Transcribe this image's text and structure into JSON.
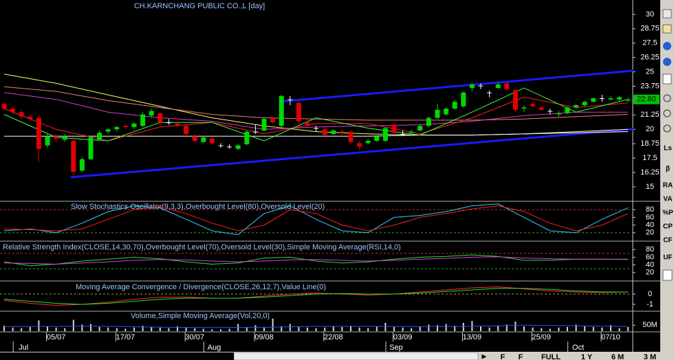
{
  "chart_data": [
    {
      "type": "candlestick",
      "title": "CH.KARNCHANG PUBLIC CO.,L [day]",
      "categories": [
        null,
        null,
        null,
        null,
        null,
        null,
        "05/07",
        null,
        null,
        null,
        null,
        null,
        null,
        null,
        "17/07",
        null,
        null,
        null,
        null,
        null,
        null,
        null,
        "30/07",
        null,
        null,
        null,
        null,
        null,
        null,
        null,
        "09/08",
        null,
        null,
        null,
        null,
        null,
        null,
        null,
        "22/08",
        null,
        null,
        null,
        null,
        null,
        null,
        null,
        "03/09",
        null,
        null,
        null,
        null,
        null,
        null,
        null,
        "13/09",
        null,
        null,
        null,
        null,
        null,
        null,
        null,
        "25/09",
        null,
        null,
        null,
        null,
        null,
        null,
        null,
        "07/10",
        null,
        null
      ],
      "months": [
        null,
        null,
        "Jul",
        null,
        null,
        null,
        null,
        null,
        null,
        null,
        null,
        null,
        null,
        null,
        null,
        null,
        null,
        null,
        null,
        null,
        null,
        null,
        null,
        null,
        "Aug",
        null,
        null,
        null,
        null,
        null,
        null,
        null,
        null,
        null,
        null,
        null,
        null,
        null,
        null,
        null,
        null,
        null,
        null,
        null,
        null,
        "Sep",
        null,
        null,
        null,
        null,
        null,
        null,
        null,
        null,
        null,
        null,
        null,
        null,
        null,
        null,
        null,
        null,
        null,
        null,
        null,
        null,
        "Oct",
        null,
        null,
        null,
        null,
        null,
        null
      ],
      "open": [
        22.2,
        21.8,
        21.5,
        21.1,
        21.0,
        18.6,
        19.4,
        19.1,
        19.0,
        16.4,
        17.4,
        19.1,
        19.8,
        20.0,
        20.3,
        20.2,
        20.3,
        21.2,
        21.4,
        20.6,
        20.5,
        20.3,
        19.4,
        18.9,
        19.2,
        18.6,
        18.5,
        18.3,
        18.7,
        19.8,
        19.9,
        20.9,
        20.3,
        22.6,
        22.3,
        20.6,
        20.1,
        20.0,
        19.6,
        19.8,
        19.8,
        18.8,
        18.8,
        19.0,
        19.0,
        20.4,
        19.6,
        19.7,
        19.9,
        20.3,
        21.0,
        21.3,
        21.8,
        22.0,
        23.6,
        23.8,
        23.2,
        23.6,
        24.0,
        23.4,
        21.8,
        22.2,
        21.9,
        21.6,
        21.3,
        21.4,
        21.9,
        22.1,
        22.4,
        22.7,
        22.6,
        22.6,
        22.5
      ],
      "high": [
        22.3,
        22.0,
        21.7,
        21.3,
        21.2,
        19.6,
        19.6,
        19.6,
        19.3,
        17.6,
        19.5,
        19.9,
        20.1,
        20.3,
        20.5,
        20.6,
        21.5,
        21.8,
        21.5,
        20.9,
        20.7,
        20.5,
        19.6,
        19.4,
        19.3,
        18.8,
        18.7,
        18.7,
        19.9,
        20.4,
        21.1,
        21.1,
        23.0,
        22.9,
        22.4,
        20.9,
        20.3,
        20.2,
        20.0,
        20.0,
        19.9,
        19.0,
        19.2,
        19.5,
        20.2,
        20.5,
        19.9,
        20.0,
        20.5,
        21.1,
        22.2,
        21.9,
        22.6,
        23.3,
        24.0,
        24.0,
        23.4,
        24.1,
        24.1,
        23.5,
        22.1,
        22.4,
        22.1,
        21.8,
        21.6,
        22.0,
        22.2,
        22.5,
        22.8,
        23.0,
        22.9,
        22.9,
        22.8
      ],
      "low": [
        21.7,
        21.3,
        20.9,
        20.7,
        17.2,
        18.4,
        18.9,
        18.9,
        16.0,
        16.3,
        17.3,
        19.0,
        19.6,
        19.8,
        20.0,
        20.0,
        20.2,
        21.0,
        20.4,
        20.4,
        20.2,
        19.4,
        18.8,
        18.8,
        18.7,
        18.4,
        18.3,
        18.2,
        18.6,
        19.6,
        19.8,
        20.5,
        20.2,
        22.1,
        20.4,
        20.2,
        19.8,
        19.3,
        19.5,
        19.5,
        18.7,
        18.2,
        18.7,
        18.9,
        18.9,
        19.5,
        19.4,
        19.5,
        19.8,
        20.2,
        20.9,
        21.2,
        21.7,
        21.9,
        23.3,
        23.5,
        22.8,
        23.5,
        23.4,
        21.5,
        21.5,
        21.9,
        21.6,
        21.3,
        21.1,
        21.3,
        21.8,
        22.0,
        22.3,
        22.4,
        22.5,
        22.4,
        22.4
      ],
      "close": [
        21.8,
        21.5,
        21.1,
        20.9,
        18.3,
        19.4,
        19.2,
        19.4,
        16.3,
        17.4,
        19.3,
        19.7,
        20.0,
        20.2,
        20.2,
        20.5,
        21.3,
        21.6,
        20.6,
        20.6,
        20.3,
        19.6,
        19.0,
        19.3,
        18.8,
        18.6,
        18.5,
        18.6,
        19.8,
        19.8,
        20.9,
        20.6,
        22.9,
        22.6,
        20.7,
        20.3,
        20.1,
        19.5,
        19.9,
        19.7,
        18.9,
        18.5,
        19.0,
        19.4,
        20.1,
        19.7,
        19.6,
        19.8,
        20.3,
        21.0,
        21.7,
        21.8,
        22.4,
        23.2,
        23.9,
        23.8,
        23.2,
        23.9,
        23.5,
        21.7,
        21.9,
        22.0,
        21.7,
        21.6,
        21.4,
        21.9,
        22.1,
        22.4,
        22.7,
        22.7,
        22.7,
        22.8,
        22.6
      ],
      "up_color": "#00d800",
      "down_color": "#e00000",
      "flat_color": "#ffffff",
      "last": 22.6,
      "last_label": "22.60",
      "last_color": "#00c000",
      "lines": [
        {
          "color": "#ffff66",
          "x": [
            0,
            6,
            12,
            18,
            24,
            30,
            36,
            42,
            48,
            54,
            60,
            66,
            72
          ],
          "values": [
            24.8,
            24.0,
            23.0,
            22.0,
            21.0,
            20.3,
            19.8,
            19.6,
            19.5,
            19.5,
            19.6,
            19.8,
            20.0
          ]
        },
        {
          "color": "#ffffff",
          "x": [
            0,
            6,
            12,
            18,
            24,
            30,
            36,
            42,
            48,
            54,
            60,
            66,
            72
          ],
          "values": [
            19.4,
            19.4,
            19.4,
            19.4,
            19.4,
            19.4,
            19.4,
            19.4,
            19.5,
            19.5,
            19.6,
            19.7,
            19.8
          ]
        },
        {
          "color": "#f08070",
          "x": [
            0,
            6,
            12,
            18,
            24,
            30,
            36,
            42,
            48,
            54,
            60,
            66,
            72
          ],
          "values": [
            23.7,
            23.3,
            22.5,
            21.9,
            21.3,
            21.0,
            20.9,
            20.8,
            20.8,
            20.8,
            20.9,
            21.1,
            21.3
          ]
        },
        {
          "color": "#d040d0",
          "x": [
            0,
            6,
            12,
            18,
            24,
            30,
            36,
            42,
            48,
            54,
            60,
            66,
            72
          ],
          "values": [
            23.2,
            22.6,
            21.5,
            21.0,
            20.7,
            20.0,
            20.2,
            20.3,
            20.4,
            20.7,
            21.2,
            21.5,
            21.5
          ]
        },
        {
          "color": "#ff2020",
          "x": [
            0,
            6,
            12,
            18,
            24,
            30,
            36,
            42,
            48,
            54,
            60,
            66,
            72
          ],
          "values": [
            21.8,
            20.0,
            19.0,
            20.2,
            20.6,
            19.6,
            20.5,
            20.5,
            19.6,
            21.0,
            22.8,
            21.9,
            22.3
          ]
        },
        {
          "color": "#40ff40",
          "x": [
            0,
            6,
            12,
            18,
            24,
            30,
            36,
            42,
            48,
            54,
            60,
            66,
            72
          ],
          "values": [
            21.3,
            19.3,
            19.0,
            20.6,
            20.6,
            19.0,
            21.0,
            20.1,
            19.5,
            21.5,
            23.6,
            21.5,
            22.6
          ]
        }
      ],
      "trendlines": [
        {
          "color": "#1a1aff",
          "x": [
            7.7,
            72.6
          ],
          "values": [
            15.83,
            20.02
          ]
        },
        {
          "color": "#1a1aff",
          "x": [
            31.8,
            72.6
          ],
          "values": [
            22.41,
            25.1
          ]
        }
      ],
      "ylim": [
        13.8,
        31.25
      ],
      "yticks": [
        15,
        16.25,
        17.5,
        18.75,
        20,
        21.25,
        22.5,
        23.75,
        25,
        26.25,
        27.5,
        28.75,
        30
      ]
    },
    {
      "type": "line",
      "title": "Slow Stochastics Oscillator(9,3,3),Overbought Level(80),Oversold Level(20)",
      "x": [
        0,
        3,
        6,
        9,
        12,
        15,
        18,
        21,
        24,
        27,
        30,
        33,
        36,
        39,
        42,
        45,
        48,
        51,
        54,
        57,
        60,
        63,
        66,
        69,
        72
      ],
      "series": [
        {
          "color": "#30d0ff",
          "values": [
            25,
            30,
            20,
            45,
            75,
            90,
            85,
            55,
            25,
            15,
            70,
            90,
            55,
            25,
            20,
            60,
            65,
            75,
            90,
            95,
            60,
            25,
            20,
            55,
            85
          ]
        },
        {
          "color": "#ff2020",
          "values": [
            30,
            28,
            25,
            30,
            55,
            80,
            88,
            70,
            45,
            25,
            40,
            80,
            70,
            40,
            25,
            40,
            60,
            70,
            82,
            90,
            75,
            45,
            25,
            40,
            70
          ]
        }
      ],
      "levels": [
        80,
        20
      ],
      "level_colors": [
        "#c03030",
        "#30a030"
      ],
      "ylim": [
        0,
        100
      ],
      "yticks": [
        20,
        40,
        60,
        80
      ]
    },
    {
      "type": "line",
      "title": "Relative Strength Index(CLOSE,14,30,70),Overbought Level(70),Oversold Level(30),Simple Moving Average(RSI,14,0)",
      "x": [
        0,
        3,
        6,
        9,
        12,
        15,
        18,
        21,
        24,
        27,
        30,
        33,
        36,
        39,
        42,
        45,
        48,
        51,
        54,
        57,
        60,
        63,
        66,
        69,
        72
      ],
      "series": [
        {
          "color": "#30e030",
          "values": [
            48,
            38,
            42,
            50,
            55,
            60,
            56,
            48,
            42,
            45,
            58,
            60,
            50,
            45,
            48,
            55,
            60,
            62,
            66,
            62,
            52,
            52,
            55,
            55,
            54
          ]
        },
        {
          "color": "#e040e0",
          "values": [
            45,
            44,
            42,
            45,
            48,
            52,
            54,
            53,
            50,
            48,
            50,
            53,
            54,
            52,
            50,
            52,
            55,
            57,
            60,
            61,
            58,
            56,
            55,
            55,
            55
          ]
        }
      ],
      "levels": [
        70,
        30
      ],
      "level_colors": [
        "#c03030",
        "#30a030"
      ],
      "ylim": [
        0,
        100
      ],
      "yticks": [
        20,
        40,
        60,
        80
      ]
    },
    {
      "type": "line",
      "title": "Moving Average Convergence / Divergence(CLOSE,26,12,7),Value Line(0)",
      "x": [
        0,
        3,
        6,
        9,
        12,
        15,
        18,
        21,
        24,
        27,
        30,
        33,
        36,
        39,
        42,
        45,
        48,
        51,
        54,
        57,
        60,
        63,
        66,
        69,
        72
      ],
      "series": [
        {
          "color": "#ff3030",
          "values": [
            -0.6,
            -0.9,
            -1.1,
            -1.0,
            -0.8,
            -0.5,
            -0.3,
            -0.3,
            -0.4,
            -0.4,
            -0.2,
            0.0,
            0.1,
            0.0,
            -0.1,
            0.0,
            0.2,
            0.4,
            0.6,
            0.7,
            0.5,
            0.3,
            0.2,
            0.15,
            0.2
          ]
        },
        {
          "color": "#30e030",
          "values": [
            -0.5,
            -0.7,
            -0.9,
            -1.0,
            -0.9,
            -0.7,
            -0.5,
            -0.4,
            -0.4,
            -0.4,
            -0.3,
            -0.15,
            0.0,
            0.05,
            0.0,
            0.0,
            0.1,
            0.25,
            0.4,
            0.55,
            0.55,
            0.45,
            0.3,
            0.2,
            0.2
          ]
        }
      ],
      "levels": [
        0
      ],
      "level_colors": [
        "#a0a040"
      ],
      "ylim": [
        -1.6,
        1.2
      ],
      "yticks": [
        -1,
        0
      ]
    },
    {
      "type": "volume",
      "title": "Volume,Simple Moving Average(Vol,20,0)",
      "values": [
        45000000.0,
        30000000.0,
        25000000.0,
        35000000.0,
        90000000.0,
        40000000.0,
        30000000.0,
        25000000.0,
        95000000.0,
        55000000.0,
        60000000.0,
        35000000.0,
        30000000.0,
        25000000.0,
        20000000.0,
        30000000.0,
        45000000.0,
        35000000.0,
        30000000.0,
        25000000.0,
        40000000.0,
        30000000.0,
        25000000.0,
        20000000.0,
        15000000.0,
        15000000.0,
        20000000.0,
        60000000.0,
        35000000.0,
        50000000.0,
        30000000.0,
        105000000.0,
        40000000.0,
        60000000.0,
        35000000.0,
        30000000.0,
        25000000.0,
        30000000.0,
        40000000.0,
        35000000.0,
        45000000.0,
        30000000.0,
        25000000.0,
        40000000.0,
        70000000.0,
        35000000.0,
        30000000.0,
        25000000.0,
        40000000.0,
        55000000.0,
        50000000.0,
        60000000.0,
        45000000.0,
        70000000.0,
        85000000.0,
        40000000.0,
        30000000.0,
        45000000.0,
        55000000.0,
        80000000.0,
        40000000.0,
        30000000.0,
        25000000.0,
        20000000.0,
        30000000.0,
        35000000.0,
        55000000.0,
        40000000.0,
        35000000.0,
        30000000.0,
        50000000.0,
        25000000.0,
        35000000.0
      ],
      "color": "#d8d8d8",
      "sma": {
        "color": "#3050ff",
        "x": [
          0,
          6,
          12,
          18,
          24,
          30,
          36,
          42,
          48,
          54,
          60,
          66,
          72
        ],
        "values": [
          38000000.0,
          40000000.0,
          40000000.0,
          33000000.0,
          30000000.0,
          32000000.0,
          40000000.0,
          40000000.0,
          38000000.0,
          40000000.0,
          50000000.0,
          45000000.0,
          38000000.0
        ]
      },
      "ylim": [
        0,
        161000000.0
      ],
      "yticks": [
        {
          "value": 50000000.0,
          "label": "50M"
        }
      ]
    }
  ],
  "toolbar": [
    "Ls",
    "β",
    "RA",
    "VA",
    "%P",
    "CP",
    "CF",
    "UF"
  ],
  "buttons": [
    "F",
    "F",
    "FULL",
    "1 Y",
    "6 M",
    "3 M"
  ]
}
